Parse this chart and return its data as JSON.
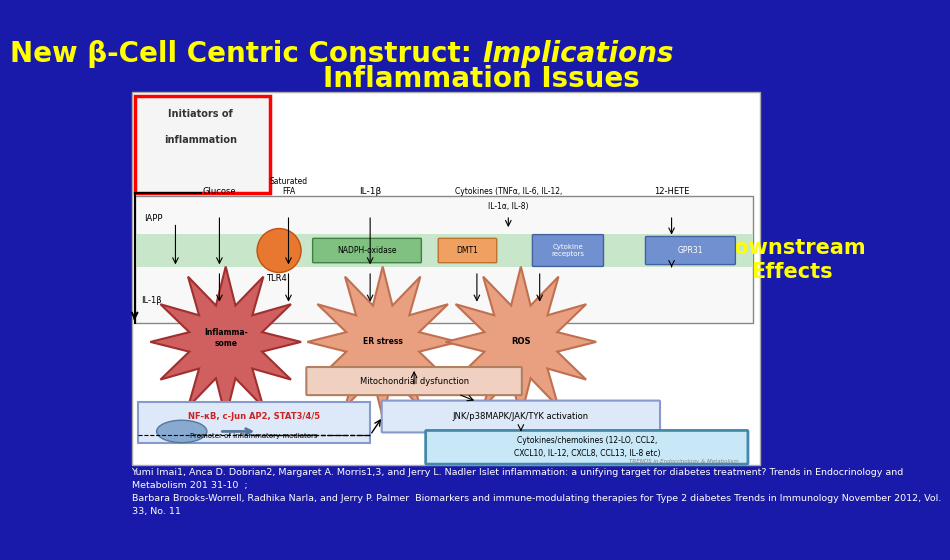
{
  "background_color": "#1a1aaa",
  "title_color": "#FFFF00",
  "title_fontsize": 20,
  "downstream_color": "#FFFF00",
  "downstream_fontsize": 15,
  "footer_color": "#FFFFFF",
  "footer_fontsize": 6.8,
  "footer_lines": [
    "Yumi Imai1, Anca D. Dobrian2, Margaret A. Morris1,3, and Jerry L. Nadler Islet inflammation: a unifying target for diabetes treatment? Trends in Endocrinology and",
    "Metabolism 201 31-10  ;",
    "Barbara Brooks-Worrell, Radhika Narla, and Jerry P. Palmer  Biomarkers and immune-modulating therapies for Type 2 diabetes Trends in Immunology November 2012, Vol.",
    "33, No. 11"
  ]
}
